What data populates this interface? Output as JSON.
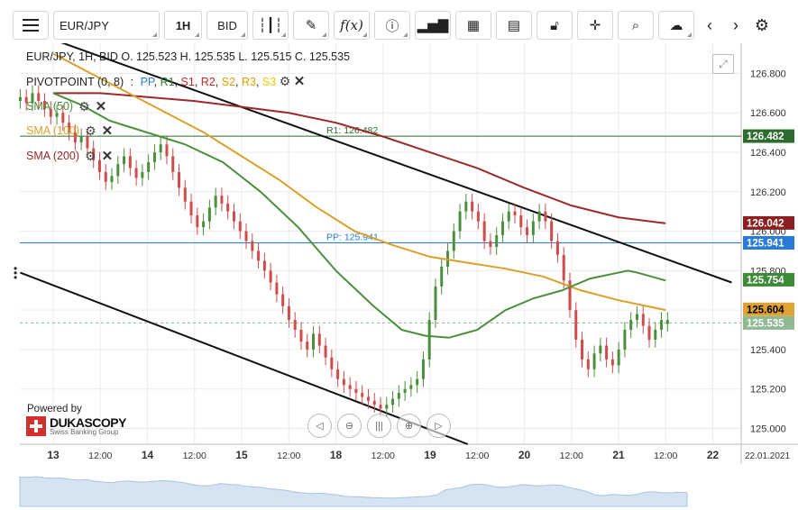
{
  "toolbar": {
    "symbol": "EUR/JPY",
    "timeframe": "1H",
    "price_side": "BID",
    "icons": [
      "menu-icon",
      "candlestick-icon",
      "pencil-icon",
      "function-icon",
      "info-icon",
      "bar-chart-icon",
      "calendar-icon",
      "news-icon",
      "lock-icon",
      "crosshair-icon",
      "zoom-icon",
      "cloud-upload-icon",
      "chevron-left-icon",
      "chevron-right-icon",
      "gear-icon"
    ]
  },
  "header": {
    "info": "EUR/JPY, 1H, BID   O. 125.523 H. 125.535 L. 125.515 C. 125.535",
    "pivot_label": "PIVOTPOINT (0, 8)",
    "pivot_sep": ":",
    "pivot_legend": {
      "pp": "PP",
      "r1": "R1",
      "s1": "S1",
      "r2": "R2",
      "s2": "S2",
      "r3": "R3",
      "s3": "S3"
    }
  },
  "indicators": [
    {
      "label": "SMA (50)",
      "color": "#4a8f3c"
    },
    {
      "label": "SMA (100)",
      "color": "#d9a12a"
    },
    {
      "label": "SMA (200)",
      "color": "#9c2a2a"
    }
  ],
  "branding": {
    "powered_by": "Powered by",
    "name": "DUKASCOPY",
    "tagline": "Swiss Banking Group"
  },
  "colors": {
    "up": "#4a8f3c",
    "down": "#d14b4b",
    "pp": "#2a7bd6",
    "r1": "#2e6b2e",
    "grid": "#ececec"
  },
  "chart_data": {
    "type": "candlestick",
    "symbol": "EUR/JPY",
    "timeframe": "1H",
    "ylim": [
      124.92,
      126.93
    ],
    "y_ticks": [
      "126.800",
      "126.600",
      "126.400",
      "126.200",
      "126.000",
      "125.800",
      "125.600",
      "125.400",
      "125.200",
      "125.000"
    ],
    "y_tick_values": [
      126.8,
      126.6,
      126.4,
      126.2,
      126.0,
      125.8,
      125.6,
      125.4,
      125.2,
      125.0
    ],
    "x_ticks": [
      {
        "label": "13",
        "pos": 0.0,
        "bold": true
      },
      {
        "label": "12:00",
        "pos": 0.5,
        "bold": false
      },
      {
        "label": "14",
        "pos": 1.0,
        "bold": true
      },
      {
        "label": "12:00",
        "pos": 1.5,
        "bold": false
      },
      {
        "label": "15",
        "pos": 2.0,
        "bold": true
      },
      {
        "label": "12:00",
        "pos": 2.5,
        "bold": false
      },
      {
        "label": "18",
        "pos": 3.0,
        "bold": true
      },
      {
        "label": "12:00",
        "pos": 3.5,
        "bold": false
      },
      {
        "label": "19",
        "pos": 4.0,
        "bold": true
      },
      {
        "label": "12:00",
        "pos": 4.5,
        "bold": false
      },
      {
        "label": "20",
        "pos": 5.0,
        "bold": true
      },
      {
        "label": "12:00",
        "pos": 5.5,
        "bold": false
      },
      {
        "label": "21",
        "pos": 6.0,
        "bold": true
      },
      {
        "label": "12:00",
        "pos": 6.5,
        "bold": false
      },
      {
        "label": "22",
        "pos": 7.0,
        "bold": true
      }
    ],
    "date_label": "22.01.2021",
    "price_close": [
      126.68,
      126.65,
      126.7,
      126.66,
      126.62,
      126.58,
      126.6,
      126.55,
      126.5,
      126.45,
      126.48,
      126.42,
      126.36,
      126.3,
      126.25,
      126.28,
      126.34,
      126.38,
      126.32,
      126.27,
      126.3,
      126.35,
      126.4,
      126.44,
      126.38,
      126.3,
      126.22,
      126.15,
      126.08,
      126.02,
      126.05,
      126.12,
      126.18,
      126.14,
      126.1,
      126.05,
      126.0,
      125.95,
      125.9,
      125.85,
      125.8,
      125.74,
      125.68,
      125.62,
      125.55,
      125.5,
      125.44,
      125.4,
      125.48,
      125.42,
      125.36,
      125.3,
      125.25,
      125.22,
      125.2,
      125.18,
      125.16,
      125.14,
      125.12,
      125.1,
      125.12,
      125.15,
      125.18,
      125.2,
      125.22,
      125.25,
      125.35,
      125.55,
      125.72,
      125.82,
      125.9,
      126.0,
      126.1,
      126.15,
      126.1,
      126.05,
      125.95,
      125.92,
      125.98,
      126.05,
      126.1,
      126.08,
      126.02,
      125.98,
      126.05,
      126.1,
      126.05,
      125.95,
      125.88,
      125.75,
      125.6,
      125.45,
      125.35,
      125.3,
      125.38,
      125.42,
      125.35,
      125.32,
      125.4,
      125.5,
      125.55,
      125.58,
      125.52,
      125.45,
      125.5,
      125.55,
      125.53
    ],
    "candle_dir": [
      1,
      0,
      1,
      0,
      0,
      0,
      1,
      0,
      0,
      0,
      1,
      0,
      0,
      0,
      0,
      1,
      1,
      1,
      0,
      0,
      1,
      1,
      1,
      1,
      0,
      0,
      0,
      0,
      0,
      0,
      1,
      1,
      1,
      0,
      0,
      0,
      0,
      0,
      0,
      0,
      0,
      0,
      0,
      0,
      0,
      0,
      0,
      0,
      1,
      0,
      0,
      0,
      0,
      0,
      0,
      0,
      0,
      0,
      0,
      0,
      1,
      1,
      1,
      1,
      1,
      1,
      1,
      1,
      1,
      1,
      1,
      1,
      1,
      1,
      0,
      0,
      0,
      0,
      1,
      1,
      1,
      0,
      0,
      0,
      1,
      1,
      0,
      0,
      0,
      0,
      0,
      0,
      0,
      0,
      1,
      1,
      0,
      0,
      1,
      1,
      1,
      1,
      0,
      0,
      1,
      1,
      1
    ],
    "sma_50": [
      [
        0,
        126.7
      ],
      [
        0.3,
        126.64
      ],
      [
        0.6,
        126.56
      ],
      [
        1.0,
        126.5
      ],
      [
        1.4,
        126.44
      ],
      [
        1.8,
        126.35
      ],
      [
        2.2,
        126.2
      ],
      [
        2.6,
        126.02
      ],
      [
        3.0,
        125.8
      ],
      [
        3.4,
        125.62
      ],
      [
        3.7,
        125.5
      ],
      [
        3.95,
        125.47
      ],
      [
        4.2,
        125.46
      ],
      [
        4.5,
        125.5
      ],
      [
        4.8,
        125.6
      ],
      [
        5.1,
        125.66
      ],
      [
        5.4,
        125.7
      ],
      [
        5.7,
        125.76
      ],
      [
        6.0,
        125.79
      ],
      [
        6.1,
        125.8
      ],
      [
        6.2,
        125.79
      ],
      [
        6.5,
        125.75
      ]
    ],
    "sma_100": [
      [
        0,
        126.9
      ],
      [
        0.4,
        126.8
      ],
      [
        0.8,
        126.7
      ],
      [
        1.2,
        126.6
      ],
      [
        1.6,
        126.5
      ],
      [
        2.0,
        126.38
      ],
      [
        2.4,
        126.26
      ],
      [
        2.8,
        126.12
      ],
      [
        3.2,
        126.0
      ],
      [
        3.6,
        125.93
      ],
      [
        4.0,
        125.87
      ],
      [
        4.4,
        125.84
      ],
      [
        4.8,
        125.81
      ],
      [
        5.2,
        125.77
      ],
      [
        5.6,
        125.7
      ],
      [
        6.0,
        125.65
      ],
      [
        6.3,
        125.62
      ],
      [
        6.5,
        125.6
      ]
    ],
    "sma_200": [
      [
        0,
        126.7
      ],
      [
        0.5,
        126.7
      ],
      [
        1.0,
        126.68
      ],
      [
        1.5,
        126.66
      ],
      [
        2.0,
        126.63
      ],
      [
        2.5,
        126.6
      ],
      [
        3.0,
        126.55
      ],
      [
        3.5,
        126.48
      ],
      [
        4.0,
        126.4
      ],
      [
        4.5,
        126.32
      ],
      [
        5.0,
        126.22
      ],
      [
        5.5,
        126.13
      ],
      [
        6.0,
        126.07
      ],
      [
        6.5,
        126.04
      ]
    ],
    "trendline_upper": [
      [
        -0.05,
        126.98
      ],
      [
        7.2,
        125.74
      ]
    ],
    "trendline_lower": [
      [
        -0.35,
        125.79
      ],
      [
        4.4,
        124.92
      ]
    ],
    "levels": [
      {
        "name": "R1",
        "value": 126.482,
        "label": "R1: 126.482",
        "color": "#2e6b2e"
      },
      {
        "name": "PP",
        "value": 125.941,
        "label": "PP: 125.941",
        "color": "#2a7bd6"
      }
    ],
    "price_tags": [
      {
        "value": 126.482,
        "label": "126.482",
        "bg": "#2e6b2e",
        "fg": "#ffffff"
      },
      {
        "value": 126.042,
        "label": "126.042",
        "bg": "#8c1f1f",
        "fg": "#ffffff"
      },
      {
        "value": 125.941,
        "label": "125.941",
        "bg": "#2a7bd6",
        "fg": "#ffffff"
      },
      {
        "value": 125.754,
        "label": "125.754",
        "bg": "#3f8a38",
        "fg": "#ffffff"
      },
      {
        "value": 125.604,
        "label": "125.604",
        "bg": "#e0a436",
        "fg": "#000000"
      },
      {
        "value": 125.535,
        "label": "125.535",
        "bg": "#8fb893",
        "fg": "#ffffff"
      }
    ],
    "last_price": 125.535
  }
}
